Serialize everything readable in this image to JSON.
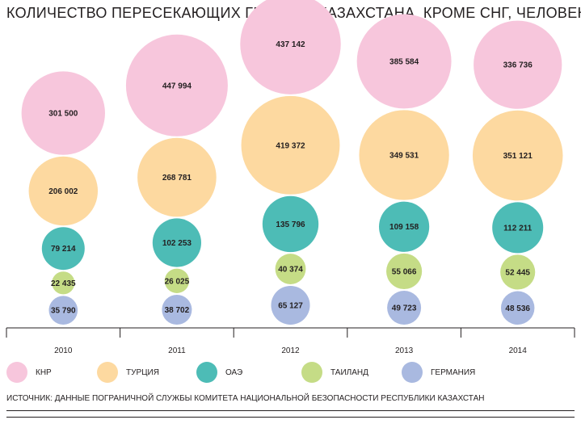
{
  "chart_data": {
    "type": "bubble",
    "title": "КОЛИЧЕСТВО ПЕРЕСЕКАЮЩИХ ГРАНИЦУ КАЗАХСТАНА, КРОМЕ СНГ, ЧЕЛОВЕК",
    "categories": [
      "2010",
      "2011",
      "2012",
      "2013",
      "2014"
    ],
    "series": [
      {
        "name": "КНР",
        "color": "#f7c6dc",
        "values": [
          301500,
          447994,
          437142,
          385584,
          336736
        ],
        "labels": [
          "301 500",
          "447 994",
          "437 142",
          "385 584",
          "336 736"
        ]
      },
      {
        "name": "ТУРЦИЯ",
        "color": "#fdd9a0",
        "values": [
          206002,
          268781,
          419372,
          349531,
          351121
        ],
        "labels": [
          "206 002",
          "268 781",
          "419 372",
          "349 531",
          "351 121"
        ]
      },
      {
        "name": "ОАЭ",
        "color": "#4dbcb6",
        "values": [
          79214,
          102253,
          135796,
          109158,
          112211
        ],
        "labels": [
          "79 214",
          "102 253",
          "135 796",
          "109 158",
          "112 211"
        ]
      },
      {
        "name": "ТАИЛАНД",
        "color": "#c5dc86",
        "values": [
          22435,
          26025,
          40374,
          55066,
          52445
        ],
        "labels": [
          "22 435",
          "26 025",
          "40 374",
          "55 066",
          "52 445"
        ]
      },
      {
        "name": "ГЕРМАНИЯ",
        "color": "#a9b9e0",
        "values": [
          35790,
          38702,
          65127,
          49723,
          48536
        ],
        "labels": [
          "35 790",
          "38 702",
          "65 127",
          "49 723",
          "48 536"
        ]
      }
    ],
    "grid": false,
    "legend": "bottom"
  },
  "source": "ИСТОЧНИК: ДАННЫЕ ПОГРАНИЧНОЙ СЛУЖБЫ КОМИТЕТА НАЦИОНАЛЬНОЙ БЕЗОПАСНОСТИ РЕСПУБЛИКИ КАЗАХСТАН"
}
